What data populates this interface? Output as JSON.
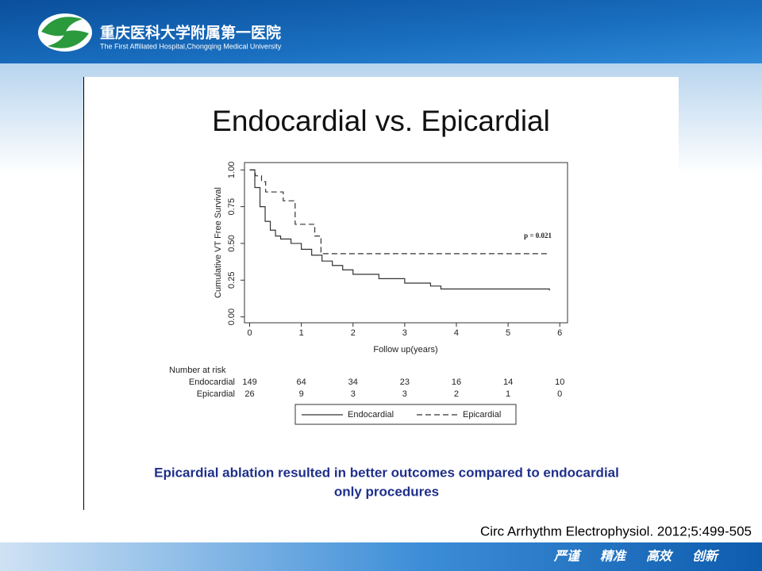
{
  "header": {
    "title_cn": "重庆医科大学附属第一医院",
    "title_en": "The First Affiliated Hospital,Chongqing Medical University"
  },
  "chart_data": {
    "type": "line",
    "step": true,
    "title": "Endocardial vs. Epicardial",
    "x_label": "Follow up(years)",
    "y_label": "Cumulative VT Free Survival",
    "xlim": [
      -0.1,
      6.15
    ],
    "ylim": [
      -0.04,
      1.05
    ],
    "xticks": [
      0,
      1,
      2,
      3,
      4,
      5,
      6
    ],
    "yticks": [
      {
        "value": 0,
        "label": "0.00"
      },
      0.25,
      {
        "value": 0.5,
        "label": "0.50"
      },
      0.75,
      {
        "value": 1,
        "label": "1.00"
      }
    ],
    "series": [
      {
        "name": "Endocardial",
        "color": "#333333",
        "line_style": "solid",
        "x": [
          0,
          0.1,
          0.2,
          0.3,
          0.4,
          0.5,
          0.6,
          0.8,
          1.0,
          1.2,
          1.4,
          1.6,
          1.8,
          2.0,
          2.5,
          3.0,
          3.5,
          3.7,
          4.5,
          5.0,
          5.8
        ],
        "values": [
          1.0,
          0.88,
          0.75,
          0.65,
          0.59,
          0.55,
          0.53,
          0.5,
          0.46,
          0.42,
          0.38,
          0.35,
          0.32,
          0.29,
          0.26,
          0.23,
          0.21,
          0.19,
          0.19,
          0.19,
          0.18
        ]
      },
      {
        "name": "Epicardial",
        "color": "#333333",
        "line_style": "dashed",
        "x": [
          0,
          0.11,
          0.23,
          0.31,
          0.65,
          0.88,
          1.26,
          1.38,
          5.8
        ],
        "values": [
          1.0,
          0.96,
          0.92,
          0.85,
          0.79,
          0.63,
          0.55,
          0.43,
          0.43
        ]
      }
    ],
    "annotation": "p = 0.021",
    "legend": "bottom",
    "risk_table": {
      "title": "Number at risk",
      "rows": [
        {
          "name": "Endocardial",
          "values": [
            149,
            64,
            34,
            23,
            16,
            14,
            10
          ]
        },
        {
          "name": "Epicardial",
          "values": [
            26,
            9,
            3,
            3,
            2,
            1,
            0
          ]
        }
      ]
    }
  },
  "caption": [
    "Epicardial ablation resulted in better outcomes compared to endocardial",
    "only procedures"
  ],
  "citation": "Circ Arrhythm  Electrophysiol. 2012;5:499-505",
  "footer": [
    "严谨",
    "精准",
    "高效",
    "创新"
  ]
}
